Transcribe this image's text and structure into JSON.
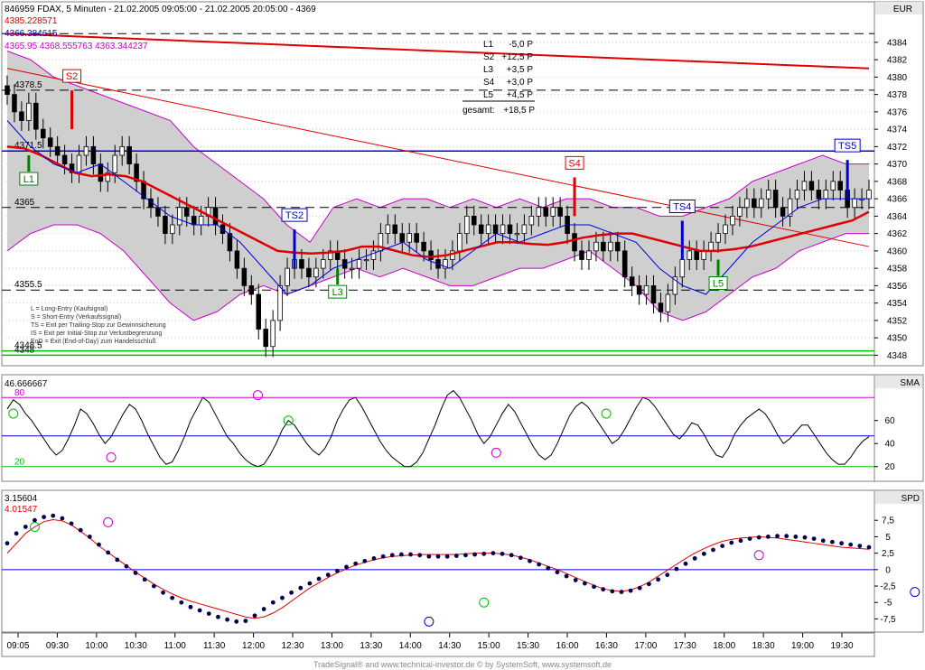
{
  "header": {
    "title": "846959  FDAX, 5 Minuten - 21.02.2005 09:05:00 - 21.02.2005 20:05:00 - 4369",
    "info_red": "4385.228571",
    "info_blue": "4366.384615",
    "info_magenta": "4365.95  4368.555763  4363.344237"
  },
  "panel_labels": {
    "price": "EUR",
    "sma": "SMA",
    "spd": "SPD"
  },
  "results_table": {
    "rows": [
      {
        "label": "L1",
        "value": "-5,0 P"
      },
      {
        "label": "S2",
        "value": "+12,5 P"
      },
      {
        "label": "L3",
        "value": "+3,5 P"
      },
      {
        "label": "S4",
        "value": "+3,0 P"
      },
      {
        "label": "L5",
        "value": "+4,5 P"
      }
    ],
    "total_label": "gesamt:",
    "total_value": "+18,5 P"
  },
  "legend_text": [
    "L = Long-Entry (Kaufsignal)",
    "S = Short-Entry (Verkaufssignal)",
    "TS = Exit per Trailing-Stop zur Gewinnsicherung",
    "IS = Exit per Initial-Stop zur Verlustbegrenzung",
    "EoD = Exit (End-of-Day) zum Handelsschluß"
  ],
  "footer": "TradeSignal® and www.technical-investor.de © by  SystemSoft, www.systemsoft.de",
  "colors": {
    "red": "#e00000",
    "blue": "#0000e0",
    "green": "#00a000",
    "magenta": "#cc00cc",
    "band_fill": "#cccccc",
    "signal_long": "#008000",
    "signal_short": "#e00000",
    "signal_exit": "#0000cc"
  },
  "chart_data": [
    {
      "type": "candlestick",
      "title": "846959  FDAX, 5 Minuten - 21.02.2005 09:05:00 - 21.02.2005 20:05:00 - 4369",
      "x_ticks": [
        "09:05",
        "09:30",
        "10:00",
        "10:30",
        "11:00",
        "11:30",
        "12:00",
        "12:30",
        "13:00",
        "13:30",
        "14:00",
        "14:30",
        "15:00",
        "15:30",
        "16:00",
        "16:30",
        "17:00",
        "17:30",
        "18:00",
        "18:30",
        "19:00",
        "19:30"
      ],
      "ylim": [
        4347,
        4387
      ],
      "y_ticks": [
        4348,
        4350,
        4352,
        4354,
        4356,
        4358,
        4360,
        4362,
        4364,
        4366,
        4368,
        4370,
        4372,
        4374,
        4376,
        4378,
        4380,
        4382,
        4384
      ],
      "horizontal_levels": [
        {
          "value": 4385,
          "style": "dashed"
        },
        {
          "value": 4378.5,
          "label": "4378.5",
          "style": "dashed"
        },
        {
          "value": 4371.5,
          "label": "4371.5",
          "style": "blue"
        },
        {
          "value": 4365,
          "label": "4365",
          "style": "dashed"
        },
        {
          "value": 4355.5,
          "label": "4355.5",
          "style": "dashed"
        },
        {
          "value": 4348.5,
          "label": "4348.5",
          "style": "green"
        },
        {
          "value": 4348,
          "label": "4348",
          "style": "green"
        }
      ],
      "close": [
        4378,
        4376,
        4375,
        4377,
        4374,
        4373,
        4372,
        4371,
        4370,
        4369,
        4371,
        4372,
        4370,
        4368,
        4369,
        4371,
        4372,
        4370,
        4368,
        4366,
        4365,
        4364,
        4362,
        4363,
        4365,
        4364,
        4363,
        4364,
        4365,
        4363,
        4362,
        4360,
        4358,
        4356,
        4355,
        4351,
        4349,
        4352,
        4356,
        4358,
        4359,
        4358,
        4357,
        4358,
        4359,
        4360,
        4359,
        4358,
        4358,
        4359,
        4359,
        4360,
        4362,
        4363,
        4362,
        4361,
        4362,
        4361,
        4360,
        4359,
        4358,
        4359,
        4360,
        4362,
        4364,
        4363,
        4362,
        4363,
        4362,
        4363,
        4362,
        4362,
        4363,
        4364,
        4365,
        4364,
        4365,
        4364,
        4362,
        4360,
        4359,
        4360,
        4361,
        4360,
        4361,
        4360,
        4357,
        4356,
        4355,
        4356,
        4354,
        4353,
        4355,
        4357,
        4359,
        4360,
        4359,
        4360,
        4361,
        4362,
        4363,
        4364,
        4365,
        4366,
        4365,
        4366,
        4367,
        4365,
        4364,
        4366,
        4367,
        4368,
        4367,
        4366,
        4367,
        4368,
        4367,
        4365,
        4366,
        4366,
        4367
      ],
      "series": [
        {
          "name": "4385.228571",
          "color": "#e00000",
          "kind": "trendline",
          "points": [
            [
              0,
              4385
            ],
            [
              120,
              4381
            ]
          ]
        },
        {
          "name": "4366.384615",
          "kind": "trendline",
          "color": "#e00000",
          "points": [
            [
              0,
              4381
            ],
            [
              120,
              4360.5
            ]
          ]
        },
        {
          "kind": "moving-average",
          "color": "#e00000",
          "values": [
            4372,
            4371.8,
            4371,
            4370,
            4369,
            4368.6,
            4368.8,
            4368.6,
            4368,
            4367,
            4366,
            4365,
            4364,
            4363,
            4362,
            4361,
            4360,
            4359.8,
            4359.7,
            4359.8,
            4360,
            4360.5,
            4360.5,
            4360,
            4359.5,
            4359.3,
            4359.5,
            4360,
            4360.5,
            4361,
            4361,
            4360.8,
            4360.7,
            4361,
            4361.5,
            4361.8,
            4362,
            4362,
            4361.5,
            4361,
            4360.5,
            4360,
            4360,
            4360.2,
            4360.5,
            4361,
            4361.5,
            4362,
            4362.5,
            4363,
            4363.5,
            4364.5
          ]
        },
        {
          "kind": "bollinger-mid",
          "color": "#0000e0",
          "values": [
            4375,
            4372,
            4370,
            4369,
            4370,
            4368,
            4366,
            4364,
            4363,
            4363,
            4361,
            4358,
            4355,
            4356,
            4358,
            4359,
            4360,
            4361,
            4359,
            4358,
            4360,
            4362,
            4361,
            4362,
            4363,
            4363,
            4362,
            4361,
            4358,
            4356,
            4355,
            4358,
            4361,
            4363,
            4365,
            4366,
            4366,
            4366
          ]
        },
        {
          "kind": "bollinger-upper",
          "color": "#cc00cc",
          "values": [
            4383,
            4382,
            4380,
            4379,
            4378,
            4377,
            4376,
            4375,
            4372,
            4370,
            4368,
            4366,
            4363,
            4361,
            4365,
            4366,
            4365,
            4366,
            4366,
            4365,
            4366,
            4365,
            4366,
            4365,
            4366,
            4366,
            4365,
            4365,
            4364,
            4364,
            4365,
            4366,
            4368,
            4369,
            4370,
            4371,
            4370,
            4370
          ]
        },
        {
          "kind": "bollinger-lower",
          "color": "#cc00cc",
          "values": [
            4360,
            4362,
            4363,
            4363,
            4362,
            4360,
            4357,
            4354,
            4352,
            4353,
            4355,
            4356,
            4355,
            4356,
            4357,
            4358,
            4357,
            4358,
            4357,
            4356,
            4356,
            4357,
            4358,
            4358,
            4359,
            4360,
            4358,
            4356,
            4353,
            4352,
            4353,
            4355,
            4357,
            4358,
            4360,
            4361,
            4362,
            4362
          ]
        }
      ],
      "signals": [
        {
          "label": "L1",
          "kind": "long",
          "x": 3,
          "y": 4371
        },
        {
          "label": "S2",
          "kind": "short",
          "x": 9,
          "y": 4374
        },
        {
          "label": "TS2",
          "kind": "exit",
          "x": 40,
          "y": 4358
        },
        {
          "label": "L3",
          "kind": "long",
          "x": 46,
          "y": 4358
        },
        {
          "label": "S4",
          "kind": "short",
          "x": 79,
          "y": 4364
        },
        {
          "label": "TS4",
          "kind": "exit",
          "x": 94,
          "y": 4359
        },
        {
          "label": "L5",
          "kind": "long",
          "x": 99,
          "y": 4359
        },
        {
          "label": "TS5",
          "kind": "exit",
          "x": 117,
          "y": 4366
        }
      ]
    },
    {
      "type": "line",
      "title": "46.666667",
      "ylim": [
        8,
        88
      ],
      "y_ticks": [
        20,
        40,
        60
      ],
      "levels": [
        {
          "value": 80,
          "label": "80"
        },
        {
          "value": 20,
          "label": "20"
        },
        {
          "value": 46.666667
        }
      ],
      "series": [
        {
          "values": [
            70,
            78,
            74,
            66,
            60,
            52,
            44,
            36,
            30,
            34,
            44,
            56,
            70,
            66,
            58,
            48,
            40,
            46,
            56,
            66,
            74,
            70,
            60,
            48,
            38,
            28,
            22,
            24,
            34,
            46,
            60,
            70,
            80,
            76,
            66,
            56,
            46,
            40,
            32,
            26,
            22,
            20,
            22,
            30,
            40,
            52,
            60,
            56,
            48,
            40,
            34,
            30,
            36,
            46,
            60,
            70,
            78,
            80,
            72,
            62,
            52,
            42,
            34,
            28,
            24,
            20,
            20,
            24,
            32,
            44,
            56,
            70,
            82,
            86,
            80,
            70,
            60,
            48,
            40,
            46,
            56,
            66,
            74,
            68,
            58,
            48,
            38,
            30,
            26,
            30,
            40,
            52,
            64,
            72,
            76,
            72,
            64,
            56,
            48,
            40,
            44,
            52,
            62,
            72,
            80,
            78,
            72,
            64,
            56,
            48,
            44,
            50,
            58,
            56,
            48,
            38,
            30,
            28,
            36,
            48,
            56,
            62,
            66,
            70,
            66,
            58,
            48,
            40,
            44,
            50,
            56,
            56,
            48,
            40,
            32,
            26,
            22,
            22,
            28,
            36,
            42,
            46
          ]
        }
      ],
      "markers": [
        {
          "x": 1,
          "y": 66,
          "kind": "long"
        },
        {
          "x": 17,
          "y": 28,
          "kind": "short"
        },
        {
          "x": 41,
          "y": 82,
          "kind": "short"
        },
        {
          "x": 46,
          "y": 60,
          "kind": "long"
        },
        {
          "x": 80,
          "y": 32,
          "kind": "short"
        },
        {
          "x": 98,
          "y": 66,
          "kind": "long"
        }
      ]
    },
    {
      "type": "line",
      "title": "3.15604",
      "ylim": [
        -9.5,
        10
      ],
      "y_ticks": [
        "7,5",
        "5",
        "2,5",
        "0",
        "-2,5",
        "-5",
        "-7,5"
      ],
      "series": [
        {
          "name": "3.15604",
          "style": "dots",
          "color": "#00004d",
          "values": [
            4,
            5.5,
            6.5,
            7.5,
            8,
            8.2,
            7.8,
            7,
            6,
            5,
            3.8,
            2.6,
            1.5,
            0.5,
            -0.5,
            -1.5,
            -2.5,
            -3.5,
            -4.3,
            -5,
            -5.7,
            -6.2,
            -6.7,
            -7.2,
            -7.6,
            -7.9,
            -7.8,
            -7,
            -6,
            -5,
            -4.3,
            -3.5,
            -2.8,
            -2.1,
            -1.4,
            -0.8,
            -0.2,
            0.4,
            0.9,
            1.3,
            1.7,
            2,
            2.2,
            2.3,
            2.3,
            2.2,
            2,
            2,
            2,
            2.1,
            2.2,
            2.3,
            2.4,
            2.5,
            2.4,
            2.2,
            1.8,
            1.3,
            0.8,
            0.2,
            -0.4,
            -1,
            -1.6,
            -2.1,
            -2.6,
            -3,
            -3.3,
            -3.4,
            -3.2,
            -2.8,
            -2.2,
            -1.5,
            -0.8,
            0.1,
            0.9,
            1.7,
            2.4,
            3,
            3.6,
            4.1,
            4.4,
            4.7,
            4.9,
            5,
            5.1,
            5.1,
            5,
            4.9,
            4.7,
            4.4,
            4.2,
            4,
            3.8,
            3.6,
            3.4
          ]
        },
        {
          "name": "4.01547",
          "style": "line",
          "color": "#e00000",
          "values": [
            2.5,
            4,
            5.5,
            6.5,
            7.3,
            7.6,
            7.4,
            6.8,
            5.8,
            4.8,
            3.6,
            2.6,
            1.6,
            0.6,
            -0.4,
            -1.3,
            -2.2,
            -3,
            -3.7,
            -4.3,
            -4.8,
            -5.2,
            -5.6,
            -6,
            -6.4,
            -6.8,
            -7.2,
            -7.4,
            -7.2,
            -6.6,
            -5.8,
            -4.8,
            -3.8,
            -2.8,
            -2,
            -1.2,
            -0.5,
            0.1,
            0.7,
            1.1,
            1.5,
            1.8,
            2,
            2.1,
            2.2,
            2.3,
            2.3,
            2.3,
            2.3,
            2.3,
            2.4,
            2.5,
            2.5,
            2.5,
            2.4,
            2.2,
            1.9,
            1.5,
            1,
            0.5,
            0,
            -0.6,
            -1.2,
            -1.8,
            -2.4,
            -2.9,
            -3.2,
            -3.3,
            -3.1,
            -2.6,
            -1.9,
            -1,
            -0.1,
            0.8,
            1.7,
            2.5,
            3.2,
            3.8,
            4.3,
            4.6,
            4.8,
            4.9,
            5,
            4.9,
            4.8,
            4.6,
            4.4,
            4.2,
            4,
            3.8,
            3.6,
            3.4,
            3.3,
            3.2,
            3.1
          ]
        }
      ],
      "markers": [
        {
          "x": 3,
          "y": 6.5,
          "kind": "long"
        },
        {
          "x": 11,
          "y": 7.2,
          "kind": "short"
        },
        {
          "x": 46,
          "y": -7.9,
          "kind": "exit"
        },
        {
          "x": 52,
          "y": -5,
          "kind": "long"
        },
        {
          "x": 82,
          "y": 2.2,
          "kind": "short"
        },
        {
          "x": 99,
          "y": -3.4,
          "kind": "exit"
        },
        {
          "x": 104,
          "y": -1.5,
          "kind": "long"
        },
        {
          "x": 133,
          "y": 5,
          "kind": "exit"
        }
      ]
    }
  ]
}
